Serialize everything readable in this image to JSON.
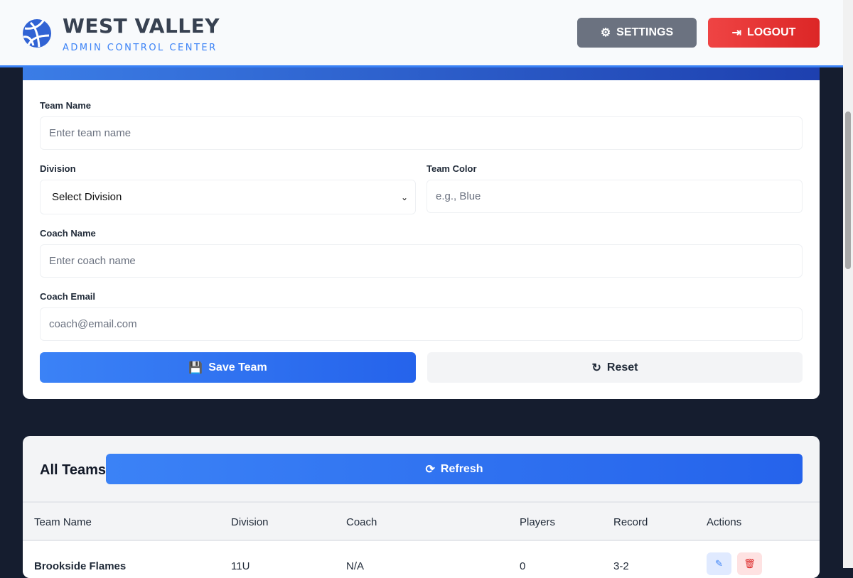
{
  "header": {
    "title": "WEST VALLEY",
    "subtitle": "ADMIN CONTROL CENTER",
    "settings_label": "SETTINGS",
    "logout_label": "LOGOUT"
  },
  "form": {
    "team_name_label": "Team Name",
    "team_name_placeholder": "Enter team name",
    "division_label": "Division",
    "division_value": "Select Division",
    "team_color_label": "Team Color",
    "team_color_placeholder": "e.g., Blue",
    "coach_name_label": "Coach Name",
    "coach_name_placeholder": "Enter coach name",
    "coach_email_label": "Coach Email",
    "coach_email_placeholder": "coach@email.com",
    "save_label": "Save Team",
    "reset_label": "Reset"
  },
  "teams": {
    "title": "All Teams",
    "refresh_label": "Refresh",
    "columns": [
      "Team Name",
      "Division",
      "Coach",
      "Players",
      "Record",
      "Actions"
    ],
    "rows": [
      {
        "name": "Brookside Flames",
        "division": "11U",
        "coach": "N/A",
        "players": "0",
        "record": "3-2"
      }
    ]
  },
  "colors": {
    "accent": "#3b82f6",
    "danger": "#ef4444",
    "background": "#151d2f"
  }
}
